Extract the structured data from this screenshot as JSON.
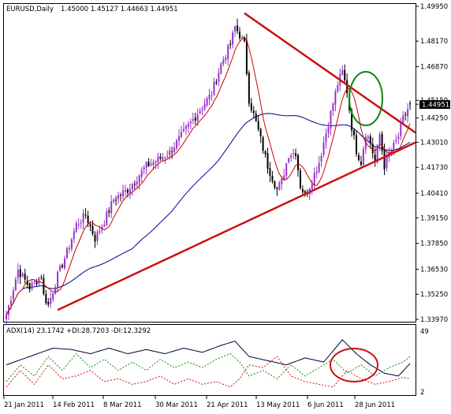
{
  "header": {
    "symbol": "EURUSD,Daily",
    "ohlc": "1.45000 1.45127 1.44663 1.44951"
  },
  "indicator": {
    "label": "ADX(14) 23.1742 +DI:28.7203 -DI:12.3292",
    "level_top": "49",
    "level_bottom": "2"
  },
  "colors": {
    "bull_candle": "#9932cc",
    "bear_candle": "#000000",
    "fast_ma": "#cc0000",
    "slow_ma": "#00008b",
    "trendline": "#cc1111",
    "ellipse_top": "#118811",
    "ellipse_bottom": "#cc1111",
    "adx": "#000033",
    "plus_di": "#118811",
    "minus_di": "#cc1111",
    "price_tag_bg": "#000000",
    "price_tag_text": "#ffffff"
  },
  "chart_data": {
    "type": "candlestick",
    "symbol": "EURUSD",
    "timeframe": "Daily",
    "price_axis_ticks": [
      "1.49950",
      "1.48170",
      "1.46870",
      "1.45150",
      "1.44951",
      "1.44250",
      "1.43010",
      "1.41730",
      "1.40410",
      "1.39150",
      "1.37850",
      "1.36530",
      "1.35250",
      "1.33970"
    ],
    "current_price": "1.44951",
    "ylim": [
      1.3397,
      1.4995
    ],
    "date_axis_ticks": [
      "21 Jan 2011",
      "14 Feb 2011",
      "8 Mar 2011",
      "30 Mar 2011",
      "21 Apr 2011",
      "13 May 2011",
      "6 Jun 2011",
      "28 Jun 2011"
    ],
    "close_anchors": [
      [
        0,
        1.3418
      ],
      [
        5,
        1.365
      ],
      [
        10,
        1.356
      ],
      [
        15,
        1.362
      ],
      [
        16,
        1.352
      ],
      [
        18,
        1.347
      ],
      [
        22,
        1.362
      ],
      [
        26,
        1.374
      ],
      [
        30,
        1.388
      ],
      [
        34,
        1.393
      ],
      [
        38,
        1.381
      ],
      [
        42,
        1.39
      ],
      [
        46,
        1.401
      ],
      [
        52,
        1.406
      ],
      [
        56,
        1.412
      ],
      [
        60,
        1.418
      ],
      [
        66,
        1.422
      ],
      [
        70,
        1.425
      ],
      [
        76,
        1.435
      ],
      [
        82,
        1.445
      ],
      [
        88,
        1.455
      ],
      [
        92,
        1.47
      ],
      [
        96,
        1.48
      ],
      [
        98,
        1.489
      ],
      [
        100,
        1.485
      ],
      [
        102,
        1.48
      ],
      [
        104,
        1.452
      ],
      [
        108,
        1.436
      ],
      [
        112,
        1.418
      ],
      [
        116,
        1.406
      ],
      [
        118,
        1.41
      ],
      [
        121,
        1.424
      ],
      [
        124,
        1.425
      ],
      [
        126,
        1.408
      ],
      [
        128,
        1.403
      ],
      [
        130,
        1.408
      ],
      [
        134,
        1.42
      ],
      [
        138,
        1.44
      ],
      [
        142,
        1.46
      ],
      [
        144,
        1.466
      ],
      [
        146,
        1.456
      ],
      [
        148,
        1.438
      ],
      [
        150,
        1.426
      ],
      [
        152,
        1.42
      ],
      [
        154,
        1.435
      ],
      [
        156,
        1.43
      ],
      [
        158,
        1.42
      ],
      [
        160,
        1.434
      ],
      [
        162,
        1.418
      ],
      [
        164,
        1.424
      ],
      [
        166,
        1.428
      ],
      [
        168,
        1.433
      ],
      [
        170,
        1.442
      ],
      [
        172,
        1.447
      ],
      [
        173,
        1.4495
      ]
    ],
    "candle_count": 174,
    "fast_ma_period": 8,
    "slow_ma_period": 55,
    "trendlines": [
      {
        "name": "upper",
        "from": [
          102,
          1.496
        ],
        "to": [
          182,
          1.435
        ]
      },
      {
        "name": "lower",
        "from": [
          22,
          1.3445
        ],
        "to": [
          182,
          1.43
        ]
      }
    ],
    "adx": {
      "period": 14,
      "value": 23.1742,
      "plus_di": 28.7203,
      "minus_di": 12.3292,
      "ylim": [
        2,
        49
      ],
      "adx_anchors": [
        [
          0,
          22
        ],
        [
          10,
          28
        ],
        [
          20,
          34
        ],
        [
          28,
          33
        ],
        [
          36,
          30
        ],
        [
          44,
          34
        ],
        [
          52,
          30
        ],
        [
          60,
          33
        ],
        [
          68,
          30
        ],
        [
          76,
          34
        ],
        [
          84,
          31
        ],
        [
          92,
          36
        ],
        [
          98,
          39
        ],
        [
          104,
          28
        ],
        [
          112,
          25
        ],
        [
          120,
          22
        ],
        [
          128,
          27
        ],
        [
          136,
          24
        ],
        [
          144,
          40
        ],
        [
          150,
          30
        ],
        [
          156,
          22
        ],
        [
          162,
          16
        ],
        [
          168,
          14
        ],
        [
          173,
          23
        ]
      ],
      "plus_di_anchors": [
        [
          0,
          10
        ],
        [
          6,
          22
        ],
        [
          12,
          14
        ],
        [
          18,
          28
        ],
        [
          24,
          18
        ],
        [
          30,
          30
        ],
        [
          36,
          20
        ],
        [
          42,
          26
        ],
        [
          48,
          18
        ],
        [
          54,
          24
        ],
        [
          60,
          18
        ],
        [
          66,
          26
        ],
        [
          72,
          20
        ],
        [
          78,
          24
        ],
        [
          84,
          20
        ],
        [
          90,
          26
        ],
        [
          96,
          30
        ],
        [
          100,
          24
        ],
        [
          104,
          14
        ],
        [
          110,
          18
        ],
        [
          116,
          12
        ],
        [
          122,
          22
        ],
        [
          128,
          14
        ],
        [
          134,
          20
        ],
        [
          140,
          26
        ],
        [
          146,
          16
        ],
        [
          152,
          22
        ],
        [
          158,
          14
        ],
        [
          164,
          20
        ],
        [
          170,
          24
        ],
        [
          173,
          28
        ]
      ],
      "minus_di_anchors": [
        [
          0,
          6
        ],
        [
          6,
          18
        ],
        [
          12,
          8
        ],
        [
          18,
          22
        ],
        [
          24,
          12
        ],
        [
          30,
          14
        ],
        [
          36,
          18
        ],
        [
          42,
          10
        ],
        [
          48,
          12
        ],
        [
          54,
          8
        ],
        [
          60,
          10
        ],
        [
          66,
          14
        ],
        [
          72,
          8
        ],
        [
          78,
          12
        ],
        [
          84,
          8
        ],
        [
          90,
          10
        ],
        [
          96,
          6
        ],
        [
          100,
          12
        ],
        [
          104,
          22
        ],
        [
          110,
          20
        ],
        [
          116,
          28
        ],
        [
          122,
          14
        ],
        [
          128,
          10
        ],
        [
          134,
          8
        ],
        [
          140,
          6
        ],
        [
          146,
          18
        ],
        [
          152,
          12
        ],
        [
          158,
          8
        ],
        [
          164,
          10
        ],
        [
          170,
          13
        ],
        [
          173,
          12
        ]
      ]
    }
  }
}
